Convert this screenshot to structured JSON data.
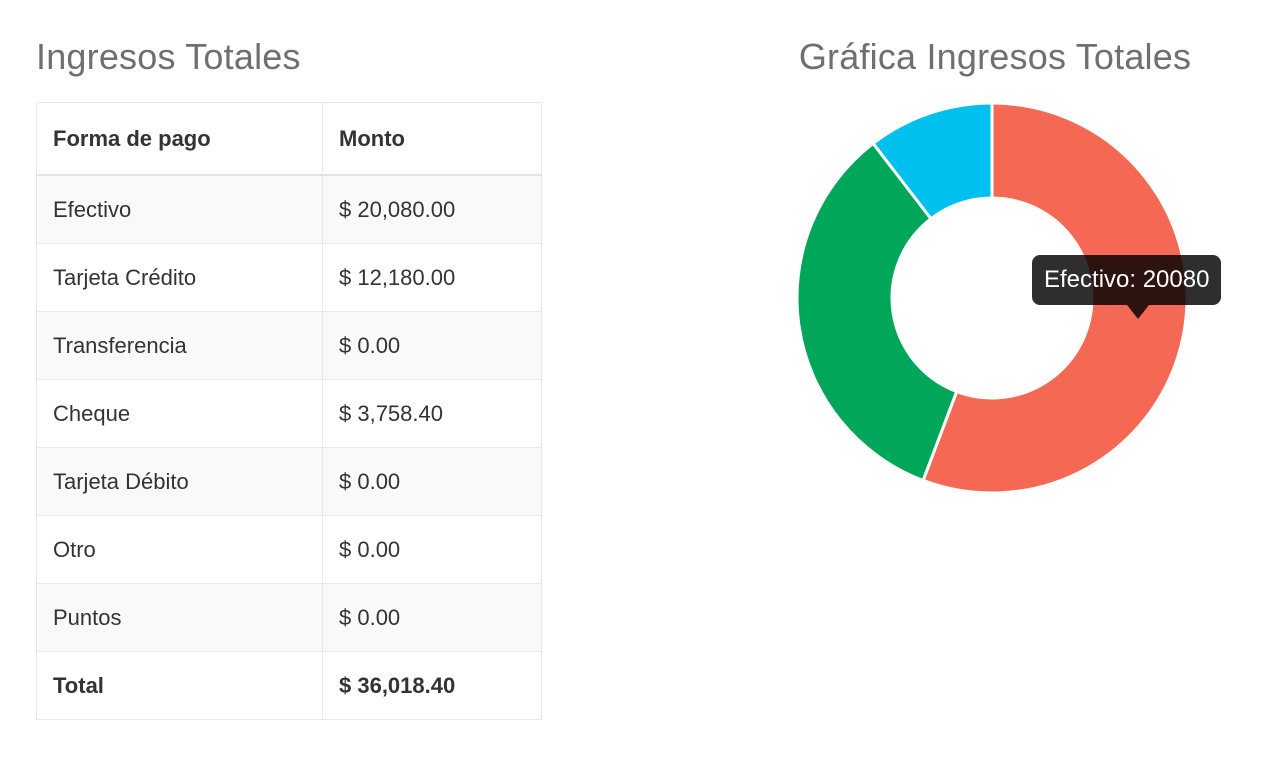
{
  "table_section": {
    "title": "Ingresos Totales",
    "headers": [
      "Forma de pago",
      "Monto"
    ],
    "rows": [
      {
        "method": "Efectivo",
        "amount": "$ 20,080.00"
      },
      {
        "method": "Tarjeta Crédito",
        "amount": "$ 12,180.00"
      },
      {
        "method": "Transferencia",
        "amount": "$ 0.00"
      },
      {
        "method": "Cheque",
        "amount": "$ 3,758.40"
      },
      {
        "method": "Tarjeta Débito",
        "amount": "$ 0.00"
      },
      {
        "method": "Otro",
        "amount": "$ 0.00"
      },
      {
        "method": "Puntos",
        "amount": "$ 0.00"
      }
    ],
    "total": {
      "label": "Total",
      "amount": "$ 36,018.40"
    }
  },
  "chart_section": {
    "title": "Gráfica Ingresos Totales",
    "tooltip": "Efectivo: 20080"
  },
  "chart_data": {
    "type": "pie",
    "variant": "doughnut",
    "categories": [
      "Efectivo",
      "Tarjeta Crédito",
      "Transferencia",
      "Cheque",
      "Tarjeta Débito",
      "Otro",
      "Puntos"
    ],
    "values": [
      20080,
      12180,
      0,
      3758.4,
      0,
      0,
      0
    ],
    "colors": [
      "#f56954",
      "#00a65a",
      "#f39c12",
      "#00c0ef",
      "#3c8dbc",
      "#d2d6de",
      "#605ca8"
    ],
    "title": "Gráfica Ingresos Totales",
    "legend": "none",
    "start_angle_deg": -90,
    "direction": "clockwise",
    "active_tooltip": {
      "label": "Efectivo",
      "value": 20080
    }
  }
}
